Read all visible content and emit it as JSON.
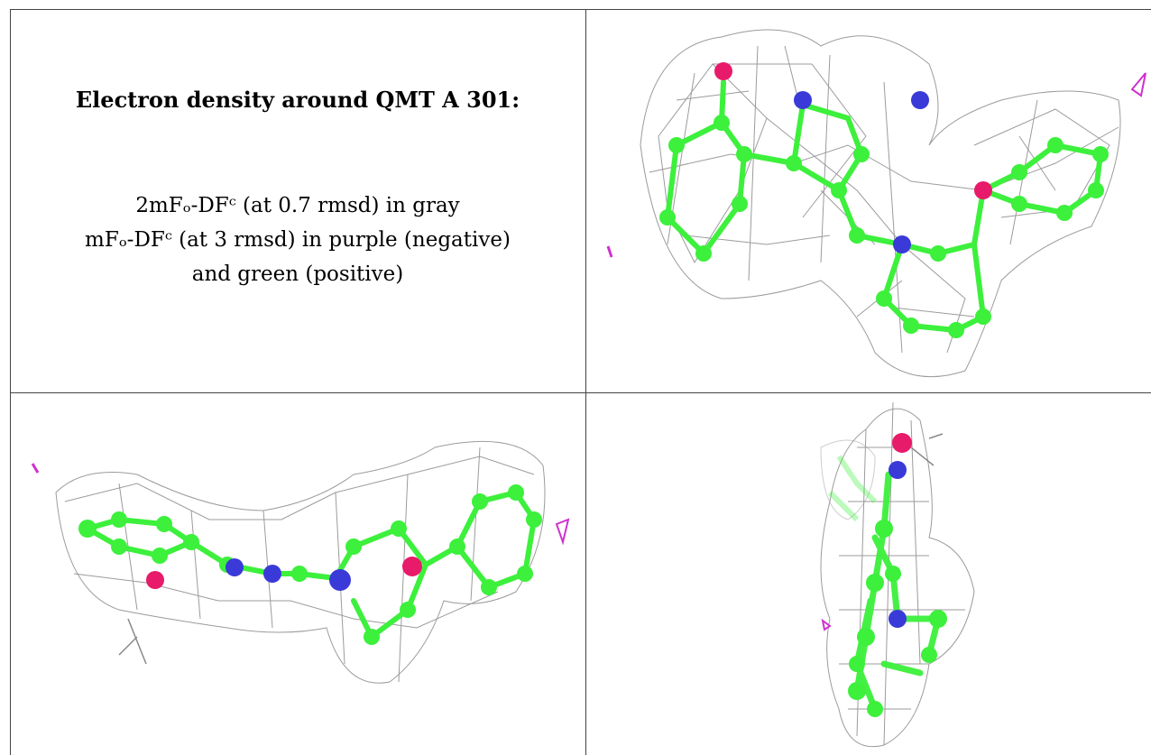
{
  "caption": {
    "title": "Electron density around QMT A 301:",
    "line1": "2mFₒ-DFᶜ (at 0.7 rmsd) in gray",
    "line2": "mFₒ-DFᶜ (at 3 rmsd) in purple (negative)",
    "line3": "and green (positive)"
  },
  "colors": {
    "mesh": "#8a8a8a",
    "carbon": "#3cf03c",
    "nitrogen": "#3a3ad8",
    "oxygen": "#e81a6a",
    "negative": "#d030d0",
    "border": "#444444"
  },
  "views": [
    "view-top-right",
    "view-bottom-left",
    "view-bottom-right"
  ]
}
